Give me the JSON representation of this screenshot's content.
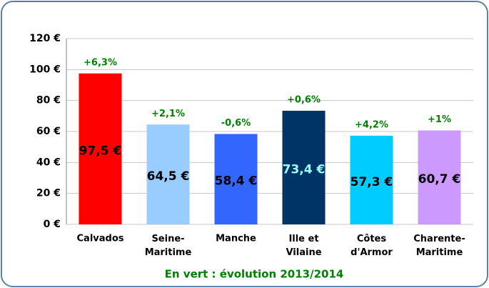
{
  "chart_data": {
    "type": "bar",
    "categories": [
      "Calvados",
      "Seine-Maritime",
      "Manche",
      "Ille et Vilaine",
      "Côtes d'Armor",
      "Charente-Maritime"
    ],
    "values": [
      97.5,
      64.5,
      58.4,
      73.4,
      57.3,
      60.7
    ],
    "value_labels": [
      "97,5 €",
      "64,5 €",
      "58,4 €",
      "73,4 €",
      "57,3 €",
      "60,7 €"
    ],
    "colors": [
      "#ff0000",
      "#99ccff",
      "#3366ff",
      "#003366",
      "#00ccff",
      "#cc99ff"
    ],
    "value_label_colors": [
      "#000000",
      "#000000",
      "#000000",
      "#99ffff",
      "#000000",
      "#000000"
    ],
    "annotations": [
      "+6,3%",
      "+2,1%",
      "-0,6%",
      "+0,6%",
      "+4,2%",
      "+1%"
    ],
    "annotation_color": "#008000",
    "note": "En vert : évolution 2013/2014",
    "ylim": [
      0,
      120
    ],
    "yticks": [
      {
        "value": 0,
        "label": "0 €"
      },
      {
        "value": 20,
        "label": "20 €"
      },
      {
        "value": 40,
        "label": "40 €"
      },
      {
        "value": 60,
        "label": "60 €"
      },
      {
        "value": 80,
        "label": "80 €"
      },
      {
        "value": 100,
        "label": "100 €"
      },
      {
        "value": 120,
        "label": "120 €"
      }
    ],
    "grid": true
  }
}
